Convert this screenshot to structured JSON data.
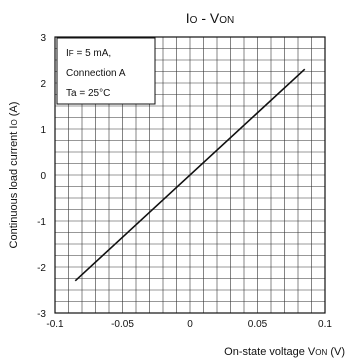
{
  "chart_data": {
    "type": "line",
    "title": {
      "parts": [
        {
          "text": "I",
          "sub": false
        },
        {
          "text": "O",
          "sub": true
        },
        {
          "text": " - V",
          "sub": false
        },
        {
          "text": "ON",
          "sub": true
        }
      ]
    },
    "xlabel": {
      "parts": [
        {
          "text": "On-state voltage V",
          "sub": false
        },
        {
          "text": "ON",
          "sub": true
        },
        {
          "text": " (V)",
          "sub": false
        }
      ]
    },
    "ylabel": {
      "parts": [
        {
          "text": "Continuous load current I",
          "sub": false
        },
        {
          "text": "O",
          "sub": true
        },
        {
          "text": " (A)",
          "sub": false
        }
      ]
    },
    "xlim": [
      -0.1,
      0.1
    ],
    "ylim": [
      -3,
      3
    ],
    "xticks": [
      {
        "value": -0.1,
        "label": "-0.1"
      },
      {
        "value": -0.05,
        "label": "-0.05"
      },
      {
        "value": 0,
        "label": "0"
      },
      {
        "value": 0.05,
        "label": "0.05"
      },
      {
        "value": 0.1,
        "label": "0.1"
      }
    ],
    "yticks": [
      {
        "value": -3,
        "label": "-3"
      },
      {
        "value": -2,
        "label": "-2"
      },
      {
        "value": -1,
        "label": "-1"
      },
      {
        "value": 0,
        "label": "0"
      },
      {
        "value": 1,
        "label": "1"
      },
      {
        "value": 2,
        "label": "2"
      },
      {
        "value": 3,
        "label": "3"
      }
    ],
    "grid": {
      "x_step": 0.01,
      "y_step": 0.25
    },
    "series": [
      {
        "x": [
          -0.085,
          0.085
        ],
        "y": [
          -2.3,
          2.3
        ],
        "color": "#111111"
      }
    ],
    "annotation_lines": [
      [
        {
          "text": "I",
          "sub": false
        },
        {
          "text": "F",
          "sub": true
        },
        {
          "text": " = 5 mA,",
          "sub": false
        }
      ],
      [
        {
          "text": "Connection A",
          "sub": false
        }
      ],
      [
        {
          "text": "Ta = 25°C",
          "sub": false
        }
      ]
    ]
  }
}
